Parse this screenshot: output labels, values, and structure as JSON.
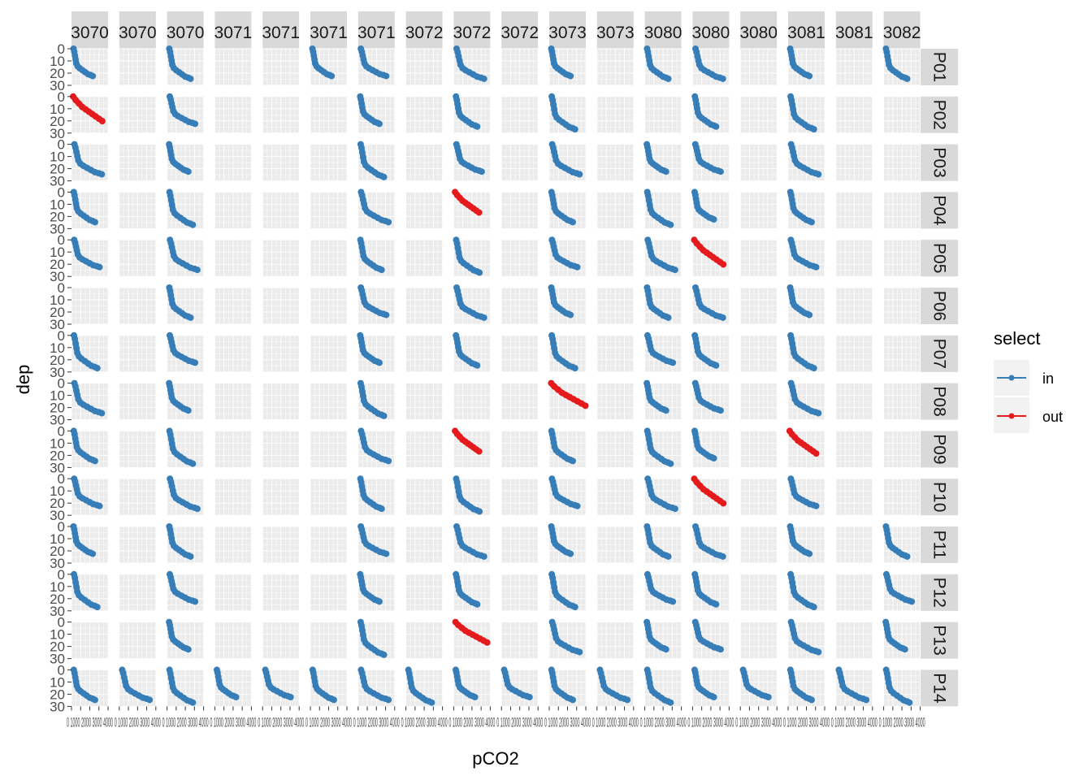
{
  "chart_data": {
    "type": "line",
    "xlabel": "pCO2",
    "ylabel": "dep",
    "y_reversed": true,
    "y_ticks": [
      "0",
      "10",
      "20",
      "30"
    ],
    "ylim": [
      0,
      30
    ],
    "xlim": [
      0,
      4000
    ],
    "x_tick_text": "0 1000 2000 3000 4000",
    "column_labels": [
      "3070",
      "3070",
      "3070",
      "3071",
      "3071",
      "3071",
      "3071",
      "3072",
      "3072",
      "3072",
      "3073",
      "3073",
      "3080",
      "3080",
      "3080",
      "3081",
      "3081",
      "3082"
    ],
    "row_labels": [
      "P01",
      "P02",
      "P03",
      "P04",
      "P05",
      "P06",
      "P07",
      "P08",
      "P09",
      "P10",
      "P11",
      "P12",
      "P13",
      "P14"
    ],
    "legend": {
      "title": "select",
      "placement": "right",
      "entries": [
        {
          "label": "in",
          "color": "#377EB8"
        },
        {
          "label": "out",
          "color": "#E41A1C"
        }
      ]
    },
    "grid": true,
    "panels_with_data": {
      "P01": [
        0,
        2,
        5,
        6,
        8,
        10,
        12,
        13,
        15,
        17
      ],
      "P02": [
        0,
        2,
        6,
        8,
        10,
        13,
        15
      ],
      "P03": [
        0,
        2,
        6,
        8,
        10,
        12,
        13,
        15
      ],
      "P04": [
        0,
        2,
        6,
        8,
        10,
        12,
        13,
        15
      ],
      "P05": [
        0,
        2,
        6,
        8,
        10,
        12,
        13,
        15
      ],
      "P06": [
        2,
        6,
        8,
        10,
        12,
        13,
        15
      ],
      "P07": [
        0,
        2,
        6,
        8,
        10,
        12,
        13,
        15
      ],
      "P08": [
        0,
        2,
        6,
        10,
        12,
        13,
        15
      ],
      "P09": [
        0,
        2,
        6,
        8,
        10,
        12,
        13,
        15
      ],
      "P10": [
        0,
        2,
        6,
        8,
        10,
        12,
        13,
        15
      ],
      "P11": [
        0,
        2,
        6,
        8,
        10,
        12,
        13,
        15,
        17
      ],
      "P12": [
        0,
        2,
        6,
        8,
        10,
        12,
        13,
        15,
        17
      ],
      "P13": [
        2,
        6,
        8,
        10,
        12,
        13,
        15,
        17
      ],
      "P14": [
        0,
        1,
        2,
        3,
        4,
        5,
        6,
        7,
        8,
        9,
        10,
        11,
        12,
        13,
        14,
        15,
        16,
        17
      ]
    },
    "out_panels": {
      "P02": [
        0
      ],
      "P04": [
        8
      ],
      "P05": [
        13
      ],
      "P08": [
        10
      ],
      "P09": [
        8,
        15
      ],
      "P10": [
        13
      ],
      "P13": [
        8
      ]
    },
    "series": [
      {
        "name": "in",
        "profile_shape_pco2_vs_dep": [
          [
            300,
            0
          ],
          [
            400,
            3
          ],
          [
            500,
            7
          ],
          [
            600,
            11
          ],
          [
            700,
            15
          ],
          [
            900,
            18
          ],
          [
            1200,
            20
          ],
          [
            1600,
            22
          ],
          [
            2000,
            24
          ],
          [
            2400,
            26
          ],
          [
            2800,
            27
          ],
          [
            3100,
            28
          ]
        ]
      },
      {
        "name": "out",
        "profile_shape_pco2_vs_dep": [
          [
            200,
            0
          ],
          [
            500,
            3
          ],
          [
            900,
            6
          ],
          [
            1300,
            9
          ],
          [
            1700,
            11
          ],
          [
            2100,
            13
          ],
          [
            2500,
            15
          ],
          [
            2900,
            17
          ],
          [
            3300,
            19
          ],
          [
            3700,
            21
          ]
        ]
      }
    ]
  }
}
